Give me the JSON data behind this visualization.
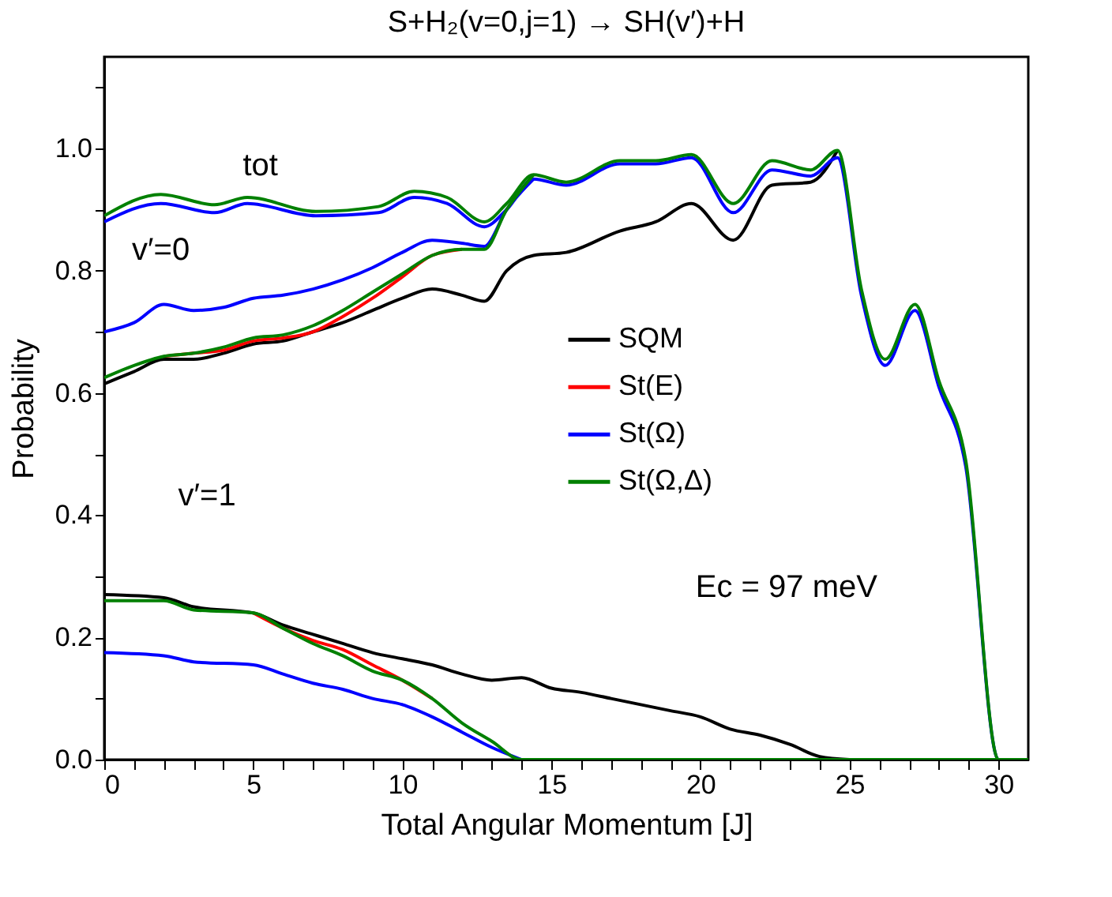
{
  "chart_data": {
    "type": "line",
    "title": "S+H₂(v=0,j=1) → SH(v′)+H",
    "xlabel": "Total Angular Momentum [J]",
    "ylabel": "Probability",
    "xlim": [
      0,
      31
    ],
    "ylim": [
      0,
      1.15
    ],
    "xticks": [
      0,
      {
        "value": 1,
        "label": null
      },
      {
        "value": 2,
        "label": null
      },
      {
        "value": 3,
        "label": null
      },
      {
        "value": 4,
        "label": null
      },
      5,
      {
        "value": 6,
        "label": null
      },
      {
        "value": 7,
        "label": null
      },
      {
        "value": 8,
        "label": null
      },
      {
        "value": 9,
        "label": null
      },
      10,
      {
        "value": 11,
        "label": null
      },
      {
        "value": 12,
        "label": null
      },
      {
        "value": 13,
        "label": null
      },
      {
        "value": 14,
        "label": null
      },
      15,
      {
        "value": 16,
        "label": null
      },
      {
        "value": 17,
        "label": null
      },
      {
        "value": 18,
        "label": null
      },
      {
        "value": 19,
        "label": null
      },
      20,
      {
        "value": 21,
        "label": null
      },
      {
        "value": 22,
        "label": null
      },
      {
        "value": 23,
        "label": null
      },
      {
        "value": 24,
        "label": null
      },
      25,
      {
        "value": 26,
        "label": null
      },
      {
        "value": 27,
        "label": null
      },
      {
        "value": 28,
        "label": null
      },
      {
        "value": 29,
        "label": null
      },
      30
    ],
    "yticks": [
      {
        "value": 0,
        "label": "0.0"
      },
      {
        "value": 0.1,
        "label": null
      },
      {
        "value": 0.2,
        "label": "0.2"
      },
      {
        "value": 0.3,
        "label": null
      },
      {
        "value": 0.4,
        "label": "0.4"
      },
      {
        "value": 0.5,
        "label": null
      },
      {
        "value": 0.6,
        "label": "0.6"
      },
      {
        "value": 0.7,
        "label": null
      },
      {
        "value": 0.8,
        "label": "0.8"
      },
      {
        "value": 0.9,
        "label": null
      },
      {
        "value": 1,
        "label": "1.0"
      },
      {
        "value": 1.1,
        "label": null
      }
    ],
    "grid": false,
    "legend": "right",
    "line_style": "solid",
    "marker": "none",
    "series": [
      {
        "name": "SQM",
        "color": "#000000",
        "x": [
          0,
          1,
          2,
          3,
          4,
          5,
          6,
          7,
          8,
          9,
          10,
          11,
          12,
          12.75,
          13.5,
          14.4,
          15.5,
          17.3,
          18.5,
          19.7,
          21.1,
          22.4,
          23.7,
          24.6
        ],
        "values": [
          0.615,
          0.635,
          0.655,
          0.655,
          0.665,
          0.68,
          0.685,
          0.7,
          0.715,
          0.735,
          0.755,
          0.77,
          0.76,
          0.75,
          0.8,
          0.825,
          0.83,
          0.865,
          0.88,
          0.91,
          0.85,
          0.94,
          0.945,
          0.997
        ]
      },
      {
        "color": "#000000",
        "x": [
          0,
          2,
          3,
          5,
          6,
          7,
          8,
          9,
          10,
          11,
          12,
          13,
          14,
          15,
          16,
          17,
          18,
          19,
          20,
          21,
          22,
          23,
          24,
          25
        ],
        "values": [
          0.27,
          0.265,
          0.25,
          0.24,
          0.22,
          0.205,
          0.19,
          0.175,
          0.165,
          0.155,
          0.14,
          0.13,
          0.134,
          0.117,
          0.11,
          0.1,
          0.09,
          0.08,
          0.07,
          0.05,
          0.04,
          0.025,
          0.005,
          0
        ]
      },
      {
        "name": "St(E)",
        "color": "#ff0000",
        "x": [
          2,
          3,
          4,
          5,
          6,
          7,
          8,
          9,
          10,
          11,
          12
        ],
        "values": [
          0.66,
          0.665,
          0.67,
          0.685,
          0.69,
          0.7,
          0.725,
          0.755,
          0.79,
          0.825,
          0.835
        ]
      },
      {
        "color": "#ff0000",
        "x": [
          5,
          6,
          7,
          8,
          9,
          10,
          11
        ],
        "values": [
          0.24,
          0.215,
          0.195,
          0.18,
          0.155,
          0.13,
          0.1
        ]
      },
      {
        "name": "St(Ω)",
        "color": "#0000ff",
        "x": [
          0,
          1.9,
          3.7,
          4.8,
          7.1,
          9.2,
          10.4,
          11.5,
          12.75,
          13.5,
          14.4,
          15.5,
          17.3,
          18.5,
          19.7,
          21.1,
          22.4,
          23.7,
          24.6,
          25.4,
          26.2,
          27.2,
          28,
          28.9,
          30,
          31
        ],
        "values": [
          0.88,
          0.91,
          0.895,
          0.91,
          0.89,
          0.895,
          0.92,
          0.91,
          0.872,
          0.9,
          0.95,
          0.94,
          0.975,
          0.975,
          0.985,
          0.895,
          0.965,
          0.955,
          0.985,
          0.76,
          0.645,
          0.735,
          0.61,
          0.48,
          0,
          0
        ]
      },
      {
        "color": "#0000ff",
        "x": [
          0,
          1,
          2,
          3,
          4,
          5,
          6,
          7,
          8,
          9,
          10,
          11,
          12,
          12.75,
          13.5,
          14.4
        ],
        "values": [
          0.7,
          0.715,
          0.745,
          0.735,
          0.74,
          0.755,
          0.76,
          0.77,
          0.785,
          0.805,
          0.83,
          0.85,
          0.845,
          0.84,
          0.9,
          0.95
        ]
      },
      {
        "color": "#0000ff",
        "x": [
          0,
          2,
          3,
          5,
          6,
          7,
          8,
          9,
          10,
          11,
          12,
          13,
          14
        ],
        "values": [
          0.175,
          0.17,
          0.16,
          0.155,
          0.14,
          0.125,
          0.115,
          0.1,
          0.09,
          0.07,
          0.045,
          0.02,
          0
        ]
      },
      {
        "name": "St(Ω,Δ)",
        "color": "#008000",
        "x": [
          0,
          1.9,
          3.7,
          4.8,
          7.1,
          9.2,
          10.4,
          11.5,
          12.75,
          13.5,
          14.4,
          15.5,
          17.3,
          18.5,
          19.7,
          21.1,
          22.4,
          23.7,
          24.6,
          25.4,
          26.2,
          27.2,
          28,
          28.9,
          30,
          31
        ],
        "values": [
          0.89,
          0.925,
          0.908,
          0.92,
          0.897,
          0.905,
          0.93,
          0.92,
          0.88,
          0.91,
          0.957,
          0.945,
          0.98,
          0.98,
          0.99,
          0.91,
          0.98,
          0.965,
          0.997,
          0.77,
          0.655,
          0.745,
          0.62,
          0.49,
          0,
          0
        ]
      },
      {
        "color": "#008000",
        "x": [
          0,
          1,
          2,
          3,
          4,
          5,
          6,
          7,
          8,
          9,
          10,
          11,
          12,
          12.75,
          13.5,
          14.4
        ],
        "values": [
          0.625,
          0.645,
          0.66,
          0.665,
          0.675,
          0.69,
          0.695,
          0.71,
          0.735,
          0.765,
          0.795,
          0.825,
          0.835,
          0.835,
          0.9,
          0.957
        ]
      },
      {
        "color": "#008000",
        "x": [
          0,
          2,
          3,
          5,
          6,
          7,
          8,
          9,
          10,
          11,
          12,
          13,
          14,
          31
        ],
        "values": [
          0.26,
          0.26,
          0.245,
          0.24,
          0.215,
          0.19,
          0.17,
          0.145,
          0.13,
          0.1,
          0.06,
          0.03,
          0,
          0
        ]
      }
    ],
    "annotations": [
      "tot",
      "v′=0",
      "v′=1",
      "Ec = 97 meV"
    ]
  }
}
